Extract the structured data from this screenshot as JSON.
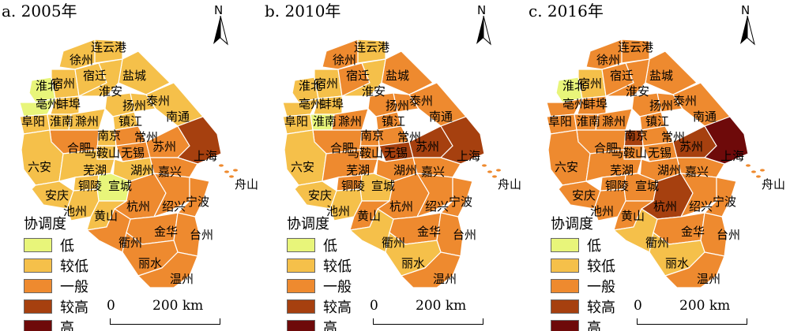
{
  "panels": [
    {
      "title": "a. 2005年",
      "fills": {
        "low": [
          "淮北",
          "亳州",
          "宣城"
        ],
        "mid": [
          "苏州",
          "嘉兴",
          "杭州",
          "绍兴",
          "宁波",
          "舟山",
          "金华",
          "台州",
          "丽水",
          "衢州",
          "温州",
          "合肥",
          "无锡",
          "常州"
        ],
        "high": [
          "上海"
        ],
        "top": []
      }
    },
    {
      "title": "b. 2010年",
      "fills": {
        "low": [
          "淮南"
        ],
        "mid": [
          "徐州",
          "马鞍山",
          "合肥",
          "南京",
          "镇江",
          "扬州",
          "常州",
          "嘉兴",
          "湖州",
          "杭州",
          "绍兴",
          "宁波",
          "舟山",
          "金华",
          "台州",
          "温州",
          "芜湖",
          "铜陵",
          "黄山",
          "滁州",
          "宿迁",
          "盐城",
          "泰州",
          "南通"
        ],
        "high": [
          "苏州",
          "无锡",
          "上海"
        ],
        "top": []
      }
    },
    {
      "title": "c. 2016年",
      "fills": {
        "low": [
          "淮北"
        ],
        "mid": [
          "徐州",
          "宿迁",
          "淮安",
          "连云港",
          "盐城",
          "扬州",
          "泰州",
          "南通",
          "阜阳",
          "六安",
          "安庆",
          "池州",
          "淮南",
          "蚌埠",
          "滁州",
          "合肥",
          "芜湖",
          "铜陵",
          "马鞍山",
          "镇江",
          "常州",
          "无锡",
          "湖州",
          "嘉兴",
          "绍兴",
          "宁波",
          "舟山",
          "金华",
          "台州",
          "温州",
          "黄山",
          "宣城",
          "亳州",
          "宁波"
        ],
        "high": [
          "南京",
          "苏州",
          "杭州"
        ],
        "top": [
          "上海"
        ]
      }
    }
  ],
  "cities": [
    "徐州",
    "连云港",
    "淮北",
    "宿州",
    "宿迁",
    "盐城",
    "亳州",
    "蚌埠",
    "淮安",
    "扬州",
    "泰州",
    "阜阳",
    "淮南",
    "滁州",
    "镇江",
    "南通",
    "南京",
    "常州",
    "合肥",
    "马鞍山",
    "无锡",
    "苏州",
    "上海",
    "六安",
    "芜湖",
    "湖州",
    "嘉兴",
    "铜陵",
    "宣城",
    "舟山",
    "安庆",
    "杭州",
    "绍兴",
    "宁波",
    "池州",
    "黄山",
    "金华",
    "台州",
    "衢州",
    "丽水",
    "温州"
  ],
  "legend": {
    "title": "协调度",
    "items": [
      {
        "label": "低",
        "color": "#e8f57a"
      },
      {
        "label": "较低",
        "color": "#f5c04a"
      },
      {
        "label": "一般",
        "color": "#ee8a2f"
      },
      {
        "label": "较高",
        "color": "#a6400f"
      },
      {
        "label": "高",
        "color": "#6e0a0a"
      }
    ]
  },
  "scale": {
    "zero": "0",
    "distance": "200 km"
  },
  "north_label": "N"
}
